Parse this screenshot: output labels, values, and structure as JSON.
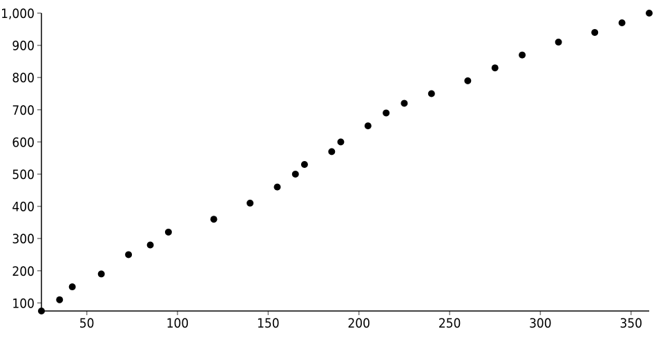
{
  "chart_data": {
    "type": "scatter",
    "title": "",
    "xlabel": "",
    "ylabel": "",
    "xlim": [
      25,
      360
    ],
    "ylim": [
      75,
      1000
    ],
    "grid": false,
    "x_ticks": [
      50,
      100,
      150,
      200,
      250,
      300,
      350
    ],
    "x_tick_labels": [
      "50",
      "100",
      "150",
      "200",
      "250",
      "300",
      "350"
    ],
    "y_ticks": [
      100,
      200,
      300,
      400,
      500,
      600,
      700,
      800,
      900,
      1000
    ],
    "y_tick_labels": [
      "100",
      "200",
      "300",
      "400",
      "500",
      "600",
      "700",
      "800",
      "900",
      "1,000"
    ],
    "marker_color": "#000000",
    "points": [
      {
        "x": 25,
        "y": 75
      },
      {
        "x": 35,
        "y": 110
      },
      {
        "x": 42,
        "y": 150
      },
      {
        "x": 58,
        "y": 190
      },
      {
        "x": 73,
        "y": 250
      },
      {
        "x": 85,
        "y": 280
      },
      {
        "x": 95,
        "y": 320
      },
      {
        "x": 120,
        "y": 360
      },
      {
        "x": 140,
        "y": 410
      },
      {
        "x": 155,
        "y": 460
      },
      {
        "x": 165,
        "y": 500
      },
      {
        "x": 170,
        "y": 530
      },
      {
        "x": 185,
        "y": 570
      },
      {
        "x": 190,
        "y": 600
      },
      {
        "x": 205,
        "y": 650
      },
      {
        "x": 215,
        "y": 690
      },
      {
        "x": 225,
        "y": 720
      },
      {
        "x": 240,
        "y": 750
      },
      {
        "x": 260,
        "y": 790
      },
      {
        "x": 275,
        "y": 830
      },
      {
        "x": 290,
        "y": 870
      },
      {
        "x": 310,
        "y": 910
      },
      {
        "x": 330,
        "y": 940
      },
      {
        "x": 345,
        "y": 970
      },
      {
        "x": 360,
        "y": 1000
      }
    ]
  }
}
